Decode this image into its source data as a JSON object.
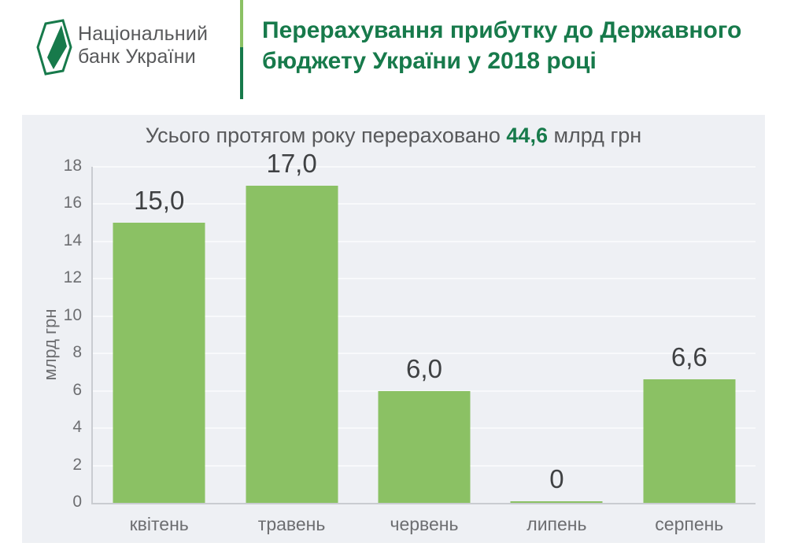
{
  "header": {
    "logo": {
      "line1": "Національний",
      "line2": "банк України"
    },
    "title_line1": "Перерахування прибутку до Державного",
    "title_line2": "бюджету України у 2018 році"
  },
  "subtitle": {
    "prefix": "Усього протягом року перераховано ",
    "highlight": "44,6",
    "suffix": " млрд грн"
  },
  "chart_data": {
    "type": "bar",
    "title": "Усього протягом року перераховано 44,6 млрд грн",
    "categories": [
      "квітень",
      "травень",
      "червень",
      "липень",
      "серпень"
    ],
    "values": [
      15.0,
      17.0,
      6.0,
      0,
      6.6
    ],
    "value_labels": [
      "15,0",
      "17,0",
      "6,0",
      "0",
      "6,6"
    ],
    "total_highlight": "44,6",
    "xlabel": "",
    "ylabel": "млрд грн",
    "ylim": [
      0,
      18
    ],
    "ytick_step": 2,
    "grid": true,
    "legend": false,
    "bar_color": "#8bc164"
  },
  "colors": {
    "brand_green": "#177a4b",
    "light_green": "#8bc164",
    "panel_bg": "#eef0f4",
    "subtitle_gray": "#58595b",
    "tick_gray": "#6d6e71",
    "value_label_dark": "#3f4143"
  }
}
